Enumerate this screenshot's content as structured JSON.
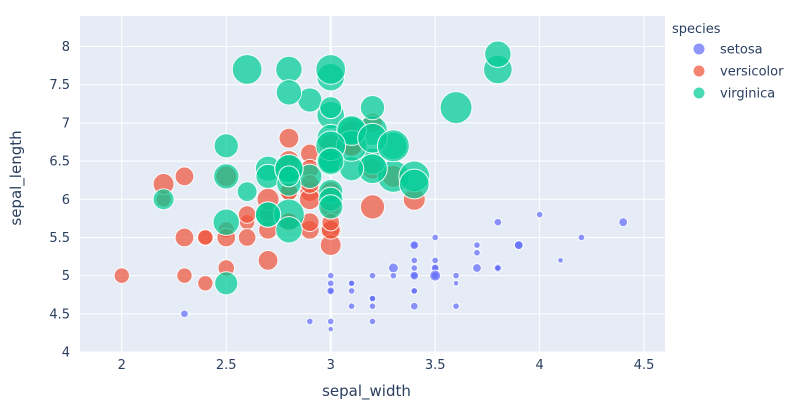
{
  "chart_data": {
    "type": "scatter",
    "xlabel": "sepal_width",
    "ylabel": "sepal_length",
    "xlim": [
      1.8,
      4.6
    ],
    "ylim": [
      4.0,
      8.4
    ],
    "x_ticks": [
      2,
      2.5,
      3,
      3.5,
      4,
      4.5
    ],
    "x_tick_labels": [
      "2",
      "2.5",
      "3",
      "3.5",
      "4",
      "4.5"
    ],
    "y_ticks": [
      4,
      4.5,
      5,
      5.5,
      6,
      6.5,
      7,
      7.5,
      8
    ],
    "y_tick_labels": [
      "4",
      "4.5",
      "5",
      "5.5",
      "6",
      "6.5",
      "7",
      "7.5",
      "8"
    ],
    "grid": true,
    "plot_background": "#e5ecf6",
    "legend": {
      "title": "species",
      "position": "right"
    },
    "size_encoding": "bubble radius scales with petal size (not labeled)",
    "series": [
      {
        "name": "setosa",
        "color": "#636efa",
        "points": [
          [
            3.5,
            5.1,
            0.2
          ],
          [
            3.0,
            4.9,
            0.2
          ],
          [
            3.2,
            4.7,
            0.2
          ],
          [
            3.1,
            4.6,
            0.2
          ],
          [
            3.6,
            5.0,
            0.2
          ],
          [
            3.9,
            5.4,
            0.4
          ],
          [
            3.4,
            4.6,
            0.3
          ],
          [
            3.4,
            5.0,
            0.2
          ],
          [
            2.9,
            4.4,
            0.2
          ],
          [
            3.1,
            4.9,
            0.1
          ],
          [
            3.7,
            5.4,
            0.2
          ],
          [
            3.4,
            4.8,
            0.2
          ],
          [
            3.0,
            4.8,
            0.1
          ],
          [
            3.0,
            4.3,
            0.1
          ],
          [
            4.0,
            5.8,
            0.2
          ],
          [
            4.4,
            5.7,
            0.4
          ],
          [
            3.9,
            5.4,
            0.4
          ],
          [
            3.5,
            5.1,
            0.3
          ],
          [
            3.8,
            5.7,
            0.3
          ],
          [
            3.8,
            5.1,
            0.3
          ],
          [
            3.4,
            5.4,
            0.2
          ],
          [
            3.7,
            5.1,
            0.4
          ],
          [
            3.6,
            4.6,
            0.2
          ],
          [
            3.3,
            5.1,
            0.5
          ],
          [
            3.4,
            4.8,
            0.2
          ],
          [
            3.0,
            5.0,
            0.2
          ],
          [
            3.4,
            5.0,
            0.4
          ],
          [
            3.5,
            5.2,
            0.2
          ],
          [
            3.4,
            5.2,
            0.2
          ],
          [
            3.2,
            4.7,
            0.2
          ],
          [
            3.1,
            4.8,
            0.2
          ],
          [
            3.4,
            5.4,
            0.4
          ],
          [
            4.1,
            5.2,
            0.1
          ],
          [
            4.2,
            5.5,
            0.2
          ],
          [
            3.1,
            4.9,
            0.2
          ],
          [
            3.2,
            5.0,
            0.2
          ],
          [
            3.5,
            5.5,
            0.2
          ],
          [
            3.6,
            4.9,
            0.1
          ],
          [
            3.0,
            4.4,
            0.2
          ],
          [
            3.4,
            5.1,
            0.2
          ],
          [
            3.5,
            5.0,
            0.3
          ],
          [
            2.3,
            4.5,
            0.3
          ],
          [
            3.2,
            4.4,
            0.2
          ],
          [
            3.5,
            5.0,
            0.6
          ],
          [
            3.8,
            5.1,
            0.4
          ],
          [
            3.0,
            4.8,
            0.3
          ],
          [
            3.8,
            5.1,
            0.2
          ],
          [
            3.2,
            4.6,
            0.2
          ],
          [
            3.7,
            5.3,
            0.2
          ],
          [
            3.3,
            5.0,
            0.2
          ]
        ]
      },
      {
        "name": "versicolor",
        "color": "#ef553b",
        "points": [
          [
            3.2,
            7.0,
            1.4
          ],
          [
            3.2,
            6.4,
            1.5
          ],
          [
            3.1,
            6.9,
            1.5
          ],
          [
            2.3,
            5.5,
            1.3
          ],
          [
            2.8,
            6.5,
            1.5
          ],
          [
            2.8,
            5.7,
            1.3
          ],
          [
            3.3,
            6.3,
            1.6
          ],
          [
            2.4,
            4.9,
            1.0
          ],
          [
            2.9,
            6.6,
            1.3
          ],
          [
            2.7,
            5.2,
            1.4
          ],
          [
            2.0,
            5.0,
            1.0
          ],
          [
            3.0,
            5.9,
            1.5
          ],
          [
            2.2,
            6.0,
            1.0
          ],
          [
            2.9,
            6.1,
            1.4
          ],
          [
            2.9,
            5.6,
            1.3
          ],
          [
            3.1,
            6.7,
            1.4
          ],
          [
            3.0,
            5.6,
            1.5
          ],
          [
            2.7,
            5.8,
            1.0
          ],
          [
            2.2,
            6.2,
            1.5
          ],
          [
            2.5,
            5.6,
            1.1
          ],
          [
            3.2,
            5.9,
            1.8
          ],
          [
            2.8,
            6.1,
            1.3
          ],
          [
            2.5,
            6.3,
            1.5
          ],
          [
            2.8,
            6.1,
            1.2
          ],
          [
            2.9,
            6.4,
            1.3
          ],
          [
            3.0,
            6.6,
            1.4
          ],
          [
            2.8,
            6.8,
            1.4
          ],
          [
            3.0,
            6.7,
            1.7
          ],
          [
            2.9,
            6.0,
            1.5
          ],
          [
            2.6,
            5.7,
            1.0
          ],
          [
            2.4,
            5.5,
            1.1
          ],
          [
            2.4,
            5.5,
            1.0
          ],
          [
            2.7,
            5.8,
            1.2
          ],
          [
            2.7,
            6.0,
            1.6
          ],
          [
            3.0,
            5.4,
            1.5
          ],
          [
            3.4,
            6.0,
            1.6
          ],
          [
            3.1,
            6.7,
            1.5
          ],
          [
            2.3,
            6.3,
            1.3
          ],
          [
            3.0,
            5.6,
            1.3
          ],
          [
            2.5,
            5.5,
            1.3
          ],
          [
            2.6,
            5.5,
            1.2
          ],
          [
            3.0,
            6.1,
            1.4
          ],
          [
            2.6,
            5.8,
            1.2
          ],
          [
            2.3,
            5.0,
            1.0
          ],
          [
            2.7,
            5.6,
            1.3
          ],
          [
            3.0,
            5.7,
            1.2
          ],
          [
            2.9,
            5.7,
            1.3
          ],
          [
            2.9,
            6.2,
            1.3
          ],
          [
            2.5,
            5.1,
            1.1
          ],
          [
            2.8,
            5.7,
            1.3
          ]
        ]
      },
      {
        "name": "virginica",
        "color": "#00cc96",
        "points": [
          [
            3.3,
            6.3,
            2.5
          ],
          [
            2.7,
            5.8,
            1.9
          ],
          [
            3.0,
            7.1,
            2.1
          ],
          [
            2.9,
            6.3,
            1.8
          ],
          [
            3.0,
            6.5,
            2.2
          ],
          [
            3.0,
            7.6,
            2.1
          ],
          [
            2.5,
            4.9,
            1.7
          ],
          [
            2.9,
            7.3,
            1.8
          ],
          [
            2.5,
            6.7,
            1.8
          ],
          [
            3.6,
            7.2,
            2.5
          ],
          [
            3.2,
            6.5,
            2.0
          ],
          [
            2.7,
            6.4,
            1.9
          ],
          [
            3.0,
            6.8,
            2.1
          ],
          [
            2.5,
            5.7,
            2.0
          ],
          [
            2.8,
            5.8,
            2.4
          ],
          [
            3.2,
            6.4,
            2.3
          ],
          [
            3.0,
            6.5,
            1.8
          ],
          [
            3.8,
            7.7,
            2.2
          ],
          [
            2.6,
            7.7,
            2.3
          ],
          [
            2.2,
            6.0,
            1.5
          ],
          [
            3.2,
            6.9,
            2.3
          ],
          [
            2.8,
            5.6,
            2.0
          ],
          [
            2.8,
            7.7,
            2.0
          ],
          [
            2.7,
            6.3,
            1.8
          ],
          [
            3.3,
            6.7,
            2.1
          ],
          [
            3.2,
            7.2,
            1.8
          ],
          [
            2.8,
            6.2,
            1.8
          ],
          [
            3.0,
            6.1,
            1.8
          ],
          [
            2.8,
            6.4,
            2.1
          ],
          [
            3.0,
            7.2,
            1.6
          ],
          [
            2.8,
            7.4,
            1.9
          ],
          [
            3.8,
            7.9,
            2.0
          ],
          [
            2.8,
            6.4,
            2.2
          ],
          [
            2.8,
            6.3,
            1.5
          ],
          [
            2.6,
            6.1,
            1.4
          ],
          [
            3.0,
            7.7,
            2.3
          ],
          [
            3.4,
            6.3,
            2.4
          ],
          [
            3.1,
            6.4,
            1.8
          ],
          [
            3.0,
            6.0,
            1.8
          ],
          [
            3.1,
            6.9,
            2.1
          ],
          [
            3.1,
            6.7,
            2.4
          ],
          [
            3.1,
            6.9,
            2.3
          ],
          [
            2.7,
            5.8,
            1.9
          ],
          [
            3.2,
            6.8,
            2.3
          ],
          [
            3.3,
            6.7,
            2.5
          ],
          [
            3.0,
            6.7,
            2.3
          ],
          [
            2.5,
            6.3,
            1.9
          ],
          [
            3.0,
            6.5,
            2.0
          ],
          [
            3.4,
            6.2,
            2.3
          ],
          [
            3.0,
            5.9,
            1.8
          ]
        ]
      }
    ]
  }
}
